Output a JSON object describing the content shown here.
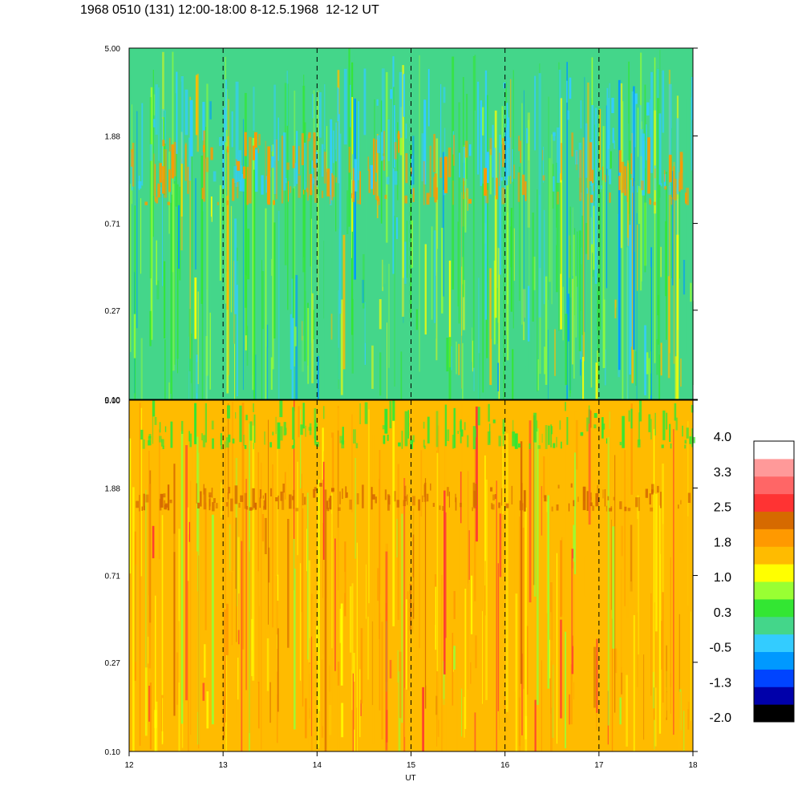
{
  "title": "1968 0510 (131) 12:00-18:00 8-12.5.1968  12-12 UT",
  "colors": {
    "scale": [
      "#000000",
      "#0000aa",
      "#0044ff",
      "#0099ff",
      "#33ccff",
      "#44d68a",
      "#33e633",
      "#99ff33",
      "#ffff00",
      "#ffbb00",
      "#ff9900",
      "#d66a00",
      "#ff3333",
      "#ff6666",
      "#ff9999",
      "#ffffff"
    ],
    "background": "#ffffff",
    "frame": "#000000",
    "panel_upper_base": "#44d68a",
    "panel_lower_base": "#ffbb00"
  },
  "chart_data": [
    {
      "type": "heatmap",
      "panel": "upper",
      "x_ticks": [
        "12",
        "13",
        "14",
        "15",
        "16",
        "17",
        "18"
      ],
      "y_ticks": [
        "0.10",
        "0.27",
        "0.71",
        "1.88",
        "5.00"
      ],
      "y_scale": "log",
      "ylim": [
        0.1,
        5.0
      ],
      "xlim": [
        12,
        18
      ],
      "dashed_verticals_at": [
        13,
        14,
        15,
        16,
        17
      ],
      "dominant_levels": [
        0.3,
        1.0,
        -0.5
      ],
      "features": [
        {
          "y_range": [
            1.0,
            4.0
          ],
          "level": -0.5,
          "note": "blue band near top"
        },
        {
          "y_range": [
            0.9,
            2.0
          ],
          "level": 1.8,
          "note": "orange patches"
        }
      ]
    },
    {
      "type": "heatmap",
      "panel": "lower",
      "x_ticks": [
        "12",
        "13",
        "14",
        "15",
        "16",
        "17",
        "18"
      ],
      "y_ticks": [
        "0.10",
        "0.27",
        "0.71",
        "1.88",
        "5.00"
      ],
      "y_scale": "log",
      "ylim": [
        0.1,
        5.0
      ],
      "xlim": [
        12,
        18
      ],
      "dashed_verticals_at": [
        13,
        14,
        15,
        16,
        17
      ],
      "dominant_levels": [
        1.8,
        1.0,
        2.5
      ],
      "features": [
        {
          "y_range": [
            1.5,
            2.0
          ],
          "level": 2.5,
          "note": "red-orange band"
        },
        {
          "y_range": [
            3.0,
            5.0
          ],
          "level": 0.3,
          "note": "green-yellow top"
        }
      ]
    }
  ],
  "xlabel": "UT",
  "colorbar": {
    "labels": [
      "4.0",
      "3.3",
      "2.5",
      "1.8",
      "1.0",
      "0.3",
      "-0.5",
      "-1.3",
      "-2.0"
    ]
  }
}
